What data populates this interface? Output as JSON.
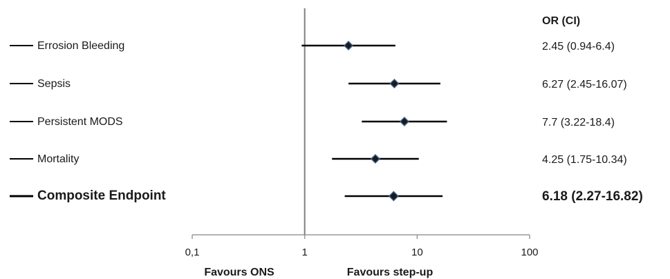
{
  "chart_data": {
    "type": "forest",
    "scale": "log",
    "xlim": [
      0.1,
      100
    ],
    "ticks": [
      {
        "value": 0.1,
        "label": "0,1"
      },
      {
        "value": 1,
        "label": "1"
      },
      {
        "value": 10,
        "label": "10"
      },
      {
        "value": 100,
        "label": "100"
      }
    ],
    "reference_line": 1,
    "column_header": "OR (CI)",
    "favours_left": "Favours ONS",
    "favours_right": "Favours step-up",
    "rows": [
      {
        "label": "Errosion Bleeding",
        "or": 2.45,
        "lo": 0.94,
        "hi": 6.4,
        "text": "2.45 (0.94-6.4)",
        "bold": false
      },
      {
        "label": "Sepsis",
        "or": 6.27,
        "lo": 2.45,
        "hi": 16.07,
        "text": "6.27 (2.45-16.07)",
        "bold": false
      },
      {
        "label": "Persistent MODS",
        "or": 7.7,
        "lo": 3.22,
        "hi": 18.4,
        "text": "7.7 (3.22-18.4)",
        "bold": false
      },
      {
        "label": "Mortality",
        "or": 4.25,
        "lo": 1.75,
        "hi": 10.34,
        "text": "4.25 (1.75-10.34)",
        "bold": false
      },
      {
        "label": "Composite Endpoint",
        "or": 6.18,
        "lo": 2.27,
        "hi": 16.82,
        "text": "6.18 (2.27-16.82)",
        "bold": true
      }
    ],
    "colors": {
      "marker": "#1a1a1a",
      "marker_edge": "#3d5f8a",
      "line": "#000000",
      "axis": "#9a9a9a",
      "ref_line": "#7f7f7f"
    }
  }
}
